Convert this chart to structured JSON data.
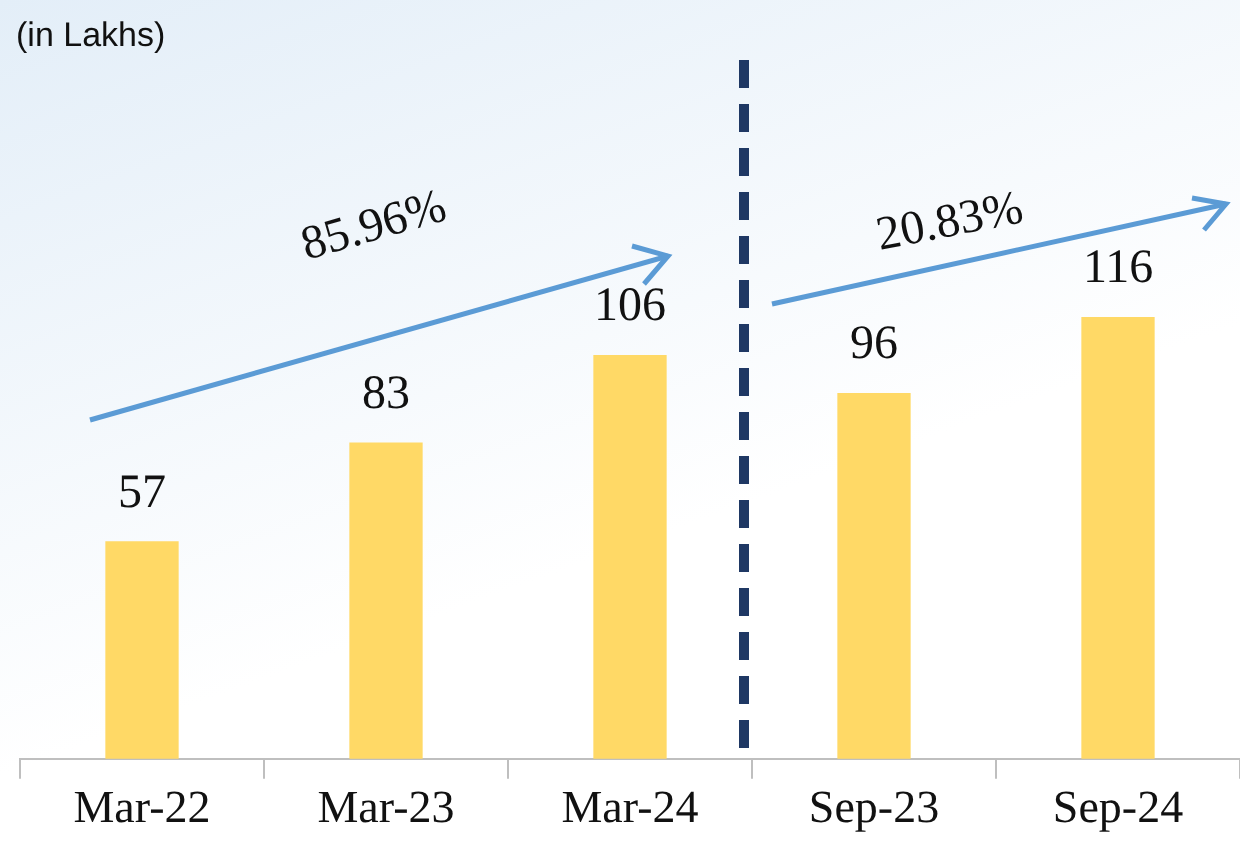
{
  "chart_data": {
    "type": "bar",
    "title": "(in Lakhs)",
    "categories": [
      "Mar-22",
      "Mar-23",
      "Mar-24",
      "Sep-23",
      "Sep-24"
    ],
    "values": [
      57,
      83,
      106,
      96,
      116
    ],
    "color": "#ffd966",
    "data_labels": true,
    "annotations": [
      "85.96%",
      "20.83%"
    ]
  }
}
